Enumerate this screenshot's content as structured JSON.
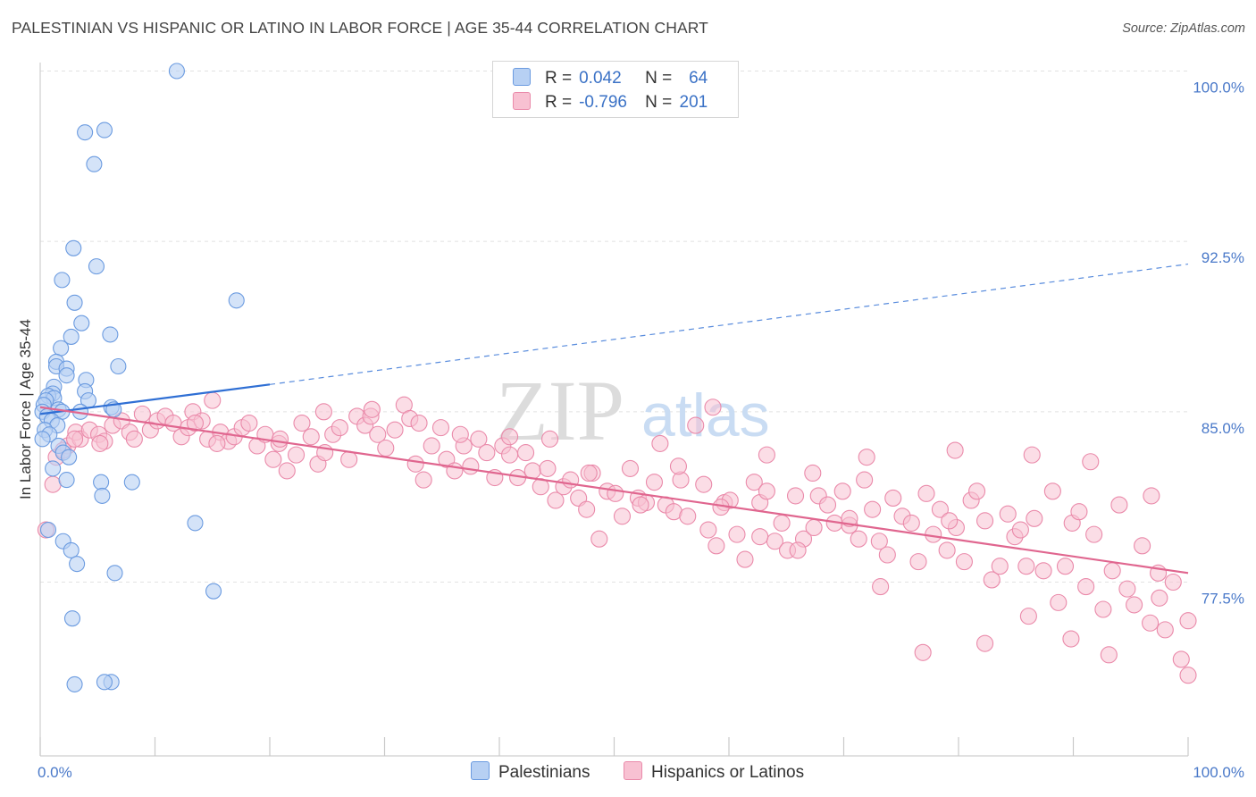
{
  "title": "PALESTINIAN VS HISPANIC OR LATINO IN LABOR FORCE | AGE 35-44 CORRELATION CHART",
  "source": "Source: ZipAtlas.com",
  "watermark": {
    "zip": "ZIP",
    "atlas": "atlas"
  },
  "colors": {
    "blue_fill": "#b7d0f3",
    "blue_stroke": "#6b9be0",
    "blue_line": "#2f6fd4",
    "pink_fill": "#f8c1d2",
    "pink_stroke": "#ea8aaa",
    "pink_line": "#e0668f",
    "label_blue": "#4a79c9"
  },
  "legend": {
    "rows": [
      {
        "r_label": "R =",
        "r_value": "0.042",
        "n_label": "N =",
        "n_value": "64",
        "color": "#b7d0f3",
        "border": "#6b9be0"
      },
      {
        "r_label": "R =",
        "r_value": "-0.796",
        "n_label": "N =",
        "n_value": "201",
        "color": "#f8c1d2",
        "border": "#ea8aaa"
      }
    ]
  },
  "bottom_legend": [
    "Palestinians",
    "Hispanics or Latinos"
  ],
  "chart_data": {
    "type": "scatter",
    "title": "PALESTINIAN VS HISPANIC OR LATINO IN LABOR FORCE | AGE 35-44 CORRELATION CHART",
    "xlabel": "",
    "ylabel": "In Labor Force | Age 35-44",
    "xlim": [
      0,
      100
    ],
    "ylim": [
      70.8,
      101.0
    ],
    "x_tick_labels": [
      "0.0%",
      "100.0%"
    ],
    "y_ticks": [
      77.5,
      85.0,
      92.5,
      100.0
    ],
    "y_tick_labels": [
      "77.5%",
      "85.0%",
      "92.5%",
      "100.0%"
    ],
    "grid": true,
    "series": [
      {
        "name": "Palestinians",
        "color": "#6b9be0",
        "trend": {
          "x0": 0,
          "y0": 84.9,
          "x1": 20,
          "y1": 86.2,
          "dashed_to": 100,
          "y_end": 91.5
        },
        "points": [
          [
            11.9,
            100.0
          ],
          [
            5.6,
            97.4
          ],
          [
            3.9,
            97.3
          ],
          [
            4.7,
            95.9
          ],
          [
            2.9,
            92.2
          ],
          [
            4.9,
            91.4
          ],
          [
            1.9,
            90.8
          ],
          [
            17.1,
            89.9
          ],
          [
            3.0,
            89.8
          ],
          [
            3.6,
            88.9
          ],
          [
            6.1,
            88.4
          ],
          [
            2.7,
            88.3
          ],
          [
            1.8,
            87.8
          ],
          [
            1.4,
            87.2
          ],
          [
            1.4,
            87.0
          ],
          [
            6.8,
            87.0
          ],
          [
            2.3,
            86.9
          ],
          [
            2.3,
            86.6
          ],
          [
            4.0,
            86.4
          ],
          [
            1.2,
            86.1
          ],
          [
            3.9,
            85.9
          ],
          [
            1.1,
            85.8
          ],
          [
            0.7,
            85.7
          ],
          [
            1.2,
            85.6
          ],
          [
            0.5,
            85.5
          ],
          [
            4.2,
            85.5
          ],
          [
            0.3,
            85.3
          ],
          [
            6.2,
            85.2
          ],
          [
            1.6,
            85.1
          ],
          [
            6.4,
            85.1
          ],
          [
            0.2,
            85.0
          ],
          [
            1.9,
            85.0
          ],
          [
            3.5,
            85.0
          ],
          [
            0.6,
            84.8
          ],
          [
            1.0,
            84.6
          ],
          [
            1.5,
            84.4
          ],
          [
            0.4,
            84.2
          ],
          [
            0.8,
            84.0
          ],
          [
            0.2,
            83.8
          ],
          [
            1.6,
            83.5
          ],
          [
            2.0,
            83.2
          ],
          [
            2.5,
            83.0
          ],
          [
            1.1,
            82.5
          ],
          [
            2.3,
            82.0
          ],
          [
            8.0,
            81.9
          ],
          [
            5.3,
            81.9
          ],
          [
            5.4,
            81.3
          ],
          [
            13.5,
            80.1
          ],
          [
            0.7,
            79.8
          ],
          [
            2.0,
            79.3
          ],
          [
            2.7,
            78.9
          ],
          [
            3.2,
            78.3
          ],
          [
            6.5,
            77.9
          ],
          [
            15.1,
            77.1
          ],
          [
            2.8,
            75.9
          ],
          [
            6.2,
            73.1
          ],
          [
            5.6,
            73.1
          ],
          [
            3.0,
            73.0
          ]
        ]
      },
      {
        "name": "Hispanics or Latinos",
        "color": "#ea8aaa",
        "trend": {
          "x0": 0,
          "y0": 85.2,
          "x1": 100,
          "y1": 77.9
        },
        "points": [
          [
            0.5,
            79.8
          ],
          [
            1.1,
            81.8
          ],
          [
            1.4,
            83.0
          ],
          [
            2.4,
            83.5
          ],
          [
            3.1,
            84.1
          ],
          [
            3.5,
            83.8
          ],
          [
            4.3,
            84.2
          ],
          [
            5.1,
            84.0
          ],
          [
            5.6,
            83.7
          ],
          [
            6.3,
            84.4
          ],
          [
            7.1,
            84.6
          ],
          [
            7.8,
            84.1
          ],
          [
            8.2,
            83.8
          ],
          [
            8.9,
            84.9
          ],
          [
            9.6,
            84.2
          ],
          [
            10.2,
            84.6
          ],
          [
            10.9,
            84.8
          ],
          [
            11.6,
            84.5
          ],
          [
            12.3,
            83.9
          ],
          [
            12.9,
            84.3
          ],
          [
            13.3,
            85.0
          ],
          [
            14.1,
            84.6
          ],
          [
            14.6,
            83.8
          ],
          [
            15.0,
            85.5
          ],
          [
            15.7,
            84.1
          ],
          [
            16.4,
            83.7
          ],
          [
            16.9,
            83.9
          ],
          [
            17.6,
            84.3
          ],
          [
            18.2,
            84.5
          ],
          [
            18.9,
            83.5
          ],
          [
            19.6,
            84.0
          ],
          [
            20.3,
            82.9
          ],
          [
            20.8,
            83.6
          ],
          [
            21.5,
            82.4
          ],
          [
            22.3,
            83.1
          ],
          [
            22.8,
            84.5
          ],
          [
            23.6,
            83.9
          ],
          [
            24.2,
            82.7
          ],
          [
            24.8,
            83.2
          ],
          [
            25.5,
            84.0
          ],
          [
            26.1,
            84.3
          ],
          [
            26.9,
            82.9
          ],
          [
            27.6,
            84.8
          ],
          [
            28.3,
            84.4
          ],
          [
            28.8,
            84.8
          ],
          [
            29.4,
            84.0
          ],
          [
            30.1,
            83.4
          ],
          [
            30.9,
            84.2
          ],
          [
            31.7,
            85.3
          ],
          [
            32.2,
            84.7
          ],
          [
            32.7,
            82.7
          ],
          [
            33.4,
            82.0
          ],
          [
            34.1,
            83.5
          ],
          [
            34.9,
            84.3
          ],
          [
            35.4,
            82.9
          ],
          [
            36.1,
            82.4
          ],
          [
            36.9,
            83.5
          ],
          [
            37.5,
            82.6
          ],
          [
            38.2,
            83.8
          ],
          [
            38.9,
            83.2
          ],
          [
            39.6,
            82.1
          ],
          [
            40.3,
            83.5
          ],
          [
            40.9,
            83.1
          ],
          [
            41.6,
            82.1
          ],
          [
            42.3,
            83.2
          ],
          [
            42.9,
            82.4
          ],
          [
            43.6,
            81.7
          ],
          [
            44.2,
            82.5
          ],
          [
            44.9,
            81.1
          ],
          [
            45.6,
            81.7
          ],
          [
            46.2,
            82.0
          ],
          [
            46.9,
            81.2
          ],
          [
            47.6,
            80.7
          ],
          [
            48.1,
            82.3
          ],
          [
            48.7,
            79.4
          ],
          [
            49.4,
            81.5
          ],
          [
            50.1,
            81.4
          ],
          [
            50.7,
            80.4
          ],
          [
            51.4,
            82.5
          ],
          [
            52.1,
            81.2
          ],
          [
            52.8,
            81.0
          ],
          [
            53.5,
            81.9
          ],
          [
            54.0,
            83.6
          ],
          [
            54.5,
            80.9
          ],
          [
            55.2,
            80.6
          ],
          [
            55.8,
            82.0
          ],
          [
            56.4,
            80.4
          ],
          [
            57.1,
            84.4
          ],
          [
            57.8,
            81.8
          ],
          [
            58.2,
            79.8
          ],
          [
            58.9,
            79.1
          ],
          [
            59.6,
            81.0
          ],
          [
            60.1,
            81.1
          ],
          [
            60.7,
            79.6
          ],
          [
            61.4,
            78.5
          ],
          [
            62.2,
            81.9
          ],
          [
            62.7,
            81.0
          ],
          [
            63.3,
            81.5
          ],
          [
            64.0,
            79.3
          ],
          [
            64.6,
            80.1
          ],
          [
            65.1,
            78.9
          ],
          [
            65.8,
            81.3
          ],
          [
            66.5,
            79.4
          ],
          [
            67.3,
            82.3
          ],
          [
            67.8,
            81.3
          ],
          [
            68.6,
            80.9
          ],
          [
            69.2,
            80.1
          ],
          [
            69.9,
            81.5
          ],
          [
            70.5,
            80.0
          ],
          [
            71.3,
            79.4
          ],
          [
            71.8,
            82.0
          ],
          [
            72.5,
            80.7
          ],
          [
            73.1,
            79.3
          ],
          [
            73.8,
            78.7
          ],
          [
            74.3,
            81.2
          ],
          [
            75.1,
            80.4
          ],
          [
            75.9,
            80.1
          ],
          [
            76.5,
            78.4
          ],
          [
            77.2,
            81.4
          ],
          [
            77.8,
            79.6
          ],
          [
            78.4,
            80.7
          ],
          [
            79.0,
            78.9
          ],
          [
            79.8,
            79.9
          ],
          [
            80.5,
            78.4
          ],
          [
            81.1,
            81.1
          ],
          [
            81.6,
            81.5
          ],
          [
            82.3,
            80.2
          ],
          [
            82.9,
            77.6
          ],
          [
            83.6,
            78.2
          ],
          [
            84.3,
            80.5
          ],
          [
            84.9,
            79.5
          ],
          [
            85.4,
            79.8
          ],
          [
            85.9,
            78.2
          ],
          [
            86.6,
            80.3
          ],
          [
            87.4,
            78.0
          ],
          [
            88.2,
            81.5
          ],
          [
            88.7,
            76.6
          ],
          [
            89.3,
            78.2
          ],
          [
            89.9,
            80.1
          ],
          [
            90.5,
            80.6
          ],
          [
            91.1,
            77.3
          ],
          [
            91.8,
            79.6
          ],
          [
            92.6,
            76.3
          ],
          [
            93.4,
            78.0
          ],
          [
            94.0,
            80.9
          ],
          [
            94.7,
            77.2
          ],
          [
            95.3,
            76.5
          ],
          [
            96.0,
            79.1
          ],
          [
            96.7,
            75.7
          ],
          [
            97.4,
            77.9
          ],
          [
            98.0,
            75.4
          ],
          [
            98.7,
            77.5
          ],
          [
            99.4,
            74.1
          ],
          [
            100.0,
            73.4
          ],
          [
            20.9,
            83.8
          ],
          [
            24.7,
            85.0
          ],
          [
            28.9,
            85.1
          ],
          [
            33.0,
            84.5
          ],
          [
            36.6,
            84.0
          ],
          [
            40.9,
            83.9
          ],
          [
            44.4,
            83.8
          ],
          [
            47.8,
            82.3
          ],
          [
            52.3,
            80.9
          ],
          [
            55.6,
            82.6
          ],
          [
            59.3,
            80.8
          ],
          [
            62.7,
            79.5
          ],
          [
            66.0,
            78.9
          ],
          [
            70.5,
            80.3
          ],
          [
            73.2,
            77.3
          ],
          [
            76.9,
            74.4
          ],
          [
            79.7,
            83.3
          ],
          [
            82.3,
            74.8
          ],
          [
            86.1,
            76.0
          ],
          [
            89.8,
            75.0
          ],
          [
            93.1,
            74.3
          ],
          [
            97.5,
            76.8
          ],
          [
            100.0,
            75.8
          ],
          [
            63.3,
            83.1
          ],
          [
            67.4,
            79.9
          ],
          [
            72.0,
            83.0
          ],
          [
            79.2,
            80.2
          ],
          [
            86.4,
            83.1
          ],
          [
            91.5,
            82.8
          ],
          [
            96.8,
            81.3
          ],
          [
            58.6,
            85.2
          ],
          [
            15.4,
            83.6
          ],
          [
            5.2,
            83.6
          ],
          [
            3.0,
            83.8
          ],
          [
            2.0,
            83.3
          ],
          [
            13.5,
            84.5
          ]
        ]
      }
    ]
  }
}
